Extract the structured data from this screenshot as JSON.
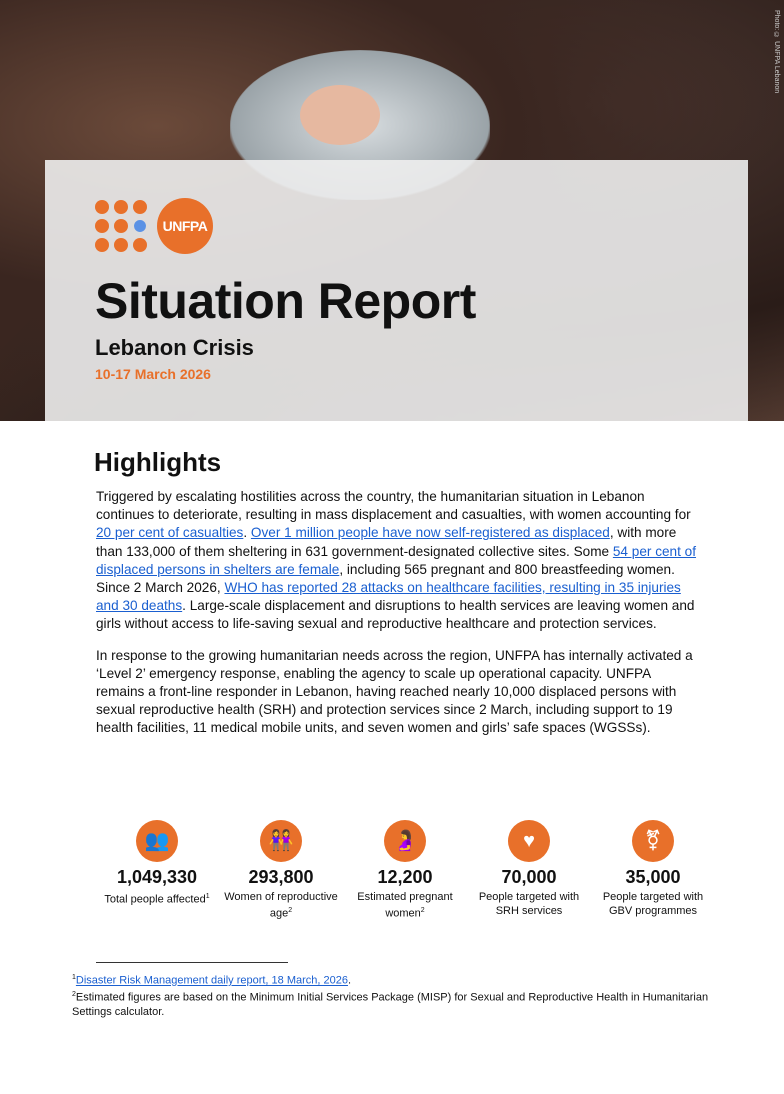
{
  "hero": {
    "photo_credit": "Photo: © UNFPA Lebanon"
  },
  "logo": {
    "text": "UNFPA"
  },
  "header": {
    "title": "Situation Report",
    "subtitle": "Lebanon Crisis",
    "date": "10-17 March 2026"
  },
  "highlights": {
    "heading": "Highlights",
    "p1": [
      {
        "t": "Triggered by escalating hostilities across the country, the humanitarian situation in Lebanon continues to deteriorate, resulting in mass displacement and casualties, with women accounting for "
      },
      {
        "t": "20 per cent of casualties",
        "link": true
      },
      {
        "t": ". "
      },
      {
        "t": "Over 1 million people have now self-registered as displaced",
        "link": true
      },
      {
        "t": ", with more than 133,000 of them sheltering in 631 government-designated collective sites. Some "
      },
      {
        "t": "54 per cent of displaced persons in shelters are female",
        "link": true
      },
      {
        "t": ", including 565 pregnant and 800 breastfeeding women. Since 2 March 2026, "
      },
      {
        "t": "WHO has reported 28 attacks on healthcare facilities, resulting in 35 injuries and 30 deaths",
        "link": true
      },
      {
        "t": ". Large-scale displacement and disruptions to health services are leaving women and girls without access to life-saving sexual and reproductive healthcare and protection services."
      }
    ],
    "p2": "In response to the growing humanitarian needs across the region, UNFPA has internally activated a ‘Level 2’ emergency response, enabling the agency to scale up operational capacity. UNFPA remains a front-line responder in Lebanon, having reached nearly 10,000 displaced persons with sexual reproductive health (SRH) and protection services since 2 March, including support to 19 health facilities, 11 medical mobile units, and seven women and girls’ safe spaces (WGSSs)."
  },
  "stats": [
    {
      "icon": "people-group-icon",
      "glyph": "👥",
      "value": "1,049,330",
      "label": "Total people affected",
      "note": "1"
    },
    {
      "icon": "women-icon",
      "glyph": "👭",
      "value": "293,800",
      "label": "Women of reproductive age",
      "note": "2"
    },
    {
      "icon": "pregnant-woman-icon",
      "glyph": "🤰",
      "value": "12,200",
      "label": "Estimated pregnant women",
      "note": "2"
    },
    {
      "icon": "heart-plus-icon",
      "glyph": "♥",
      "value": "70,000",
      "label": "People targeted with SRH services",
      "note": ""
    },
    {
      "icon": "gender-icon",
      "glyph": "⚧",
      "value": "35,000",
      "label": "People targeted with GBV programmes",
      "note": ""
    }
  ],
  "footnotes": [
    {
      "n": "1",
      "text": "Disaster Risk Management daily report, 18 March, 2026",
      "link": true,
      "after": "."
    },
    {
      "n": "2",
      "text": "Estimated figures are based on the Minimum Initial Services Package (MISP) for Sexual and Reproductive Health in Humanitarian Settings calculator.",
      "link": false,
      "after": ""
    }
  ],
  "colors": {
    "accent": "#e8702a",
    "link": "#1a5fd0"
  }
}
